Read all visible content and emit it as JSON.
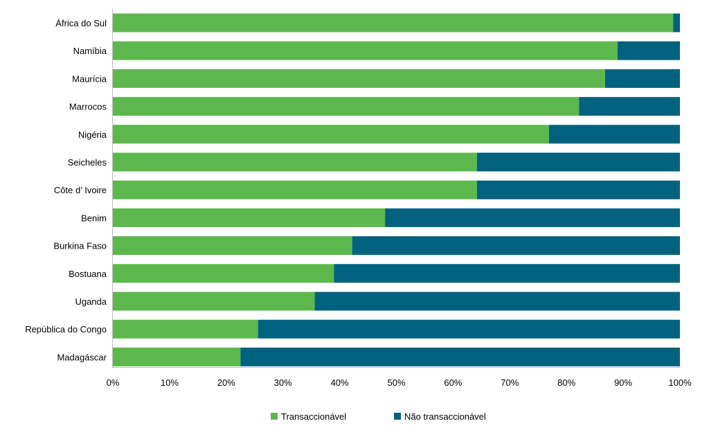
{
  "chart_data": {
    "type": "bar",
    "orientation": "horizontal",
    "stacked": true,
    "categories": [
      "África do Sul",
      "Namíbia",
      "Maurícia",
      "Marrocos",
      "Nigéria",
      "Seicheles",
      "Côte d’ Ivoire",
      "Benim",
      "Burkina Faso",
      "Bostuana",
      "Uganda",
      "República do Congo",
      "Madagáscar"
    ],
    "series": [
      {
        "name": "Transaccionável",
        "color": "#5cb84c",
        "values": [
          98.8,
          89.0,
          86.8,
          82.2,
          76.9,
          64.2,
          64.2,
          48.0,
          42.2,
          39.0,
          35.6,
          25.6,
          22.5
        ]
      },
      {
        "name": "Não transaccionável",
        "color": "#00627f",
        "values": [
          1.2,
          11.0,
          13.2,
          17.8,
          23.1,
          35.8,
          35.8,
          52.0,
          57.8,
          61.0,
          64.4,
          74.4,
          77.5
        ]
      }
    ],
    "xticks": [
      "0%",
      "10%",
      "20%",
      "30%",
      "40%",
      "50%",
      "60%",
      "70%",
      "80%",
      "90%",
      "100%"
    ],
    "xlim": [
      0,
      100
    ],
    "title": "",
    "xlabel": "",
    "ylabel": "",
    "grid": false,
    "legend_position": "bottom"
  }
}
